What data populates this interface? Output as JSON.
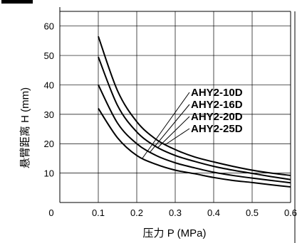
{
  "chart_data": {
    "type": "line",
    "xlabel": "压力 P (MPa)",
    "ylabel": "悬臂距离 H (mm)",
    "xlim": [
      0,
      0.6
    ],
    "ylim": [
      0,
      65
    ],
    "x_ticks": [
      "0",
      "0.1",
      "0.2",
      "0.3",
      "0.4",
      "0.5",
      "0.6"
    ],
    "y_ticks": [
      "10",
      "20",
      "30",
      "40",
      "50",
      "60"
    ],
    "grid": true,
    "series": [
      {
        "name": "AHY2-10D",
        "x": [
          0.1,
          0.15,
          0.2,
          0.25,
          0.3,
          0.35,
          0.4,
          0.45,
          0.5,
          0.55,
          0.6
        ],
        "y": [
          32,
          22,
          16,
          13,
          11,
          9.8,
          8.5,
          7.5,
          6.8,
          6,
          5.3
        ]
      },
      {
        "name": "AHY2-16D",
        "x": [
          0.1,
          0.15,
          0.2,
          0.25,
          0.3,
          0.35,
          0.4,
          0.45,
          0.5,
          0.55,
          0.6
        ],
        "y": [
          40,
          27,
          20,
          16,
          13.5,
          11.8,
          10.3,
          9.2,
          8.3,
          7.5,
          6.7
        ]
      },
      {
        "name": "AHY2-20D",
        "x": [
          0.1,
          0.15,
          0.2,
          0.25,
          0.3,
          0.35,
          0.4,
          0.45,
          0.5,
          0.55,
          0.6
        ],
        "y": [
          49.5,
          33,
          24,
          19,
          16,
          14,
          12.3,
          11,
          9.9,
          8.8,
          7.8
        ]
      },
      {
        "name": "AHY2-25D",
        "x": [
          0.1,
          0.15,
          0.2,
          0.25,
          0.3,
          0.35,
          0.4,
          0.45,
          0.5,
          0.55,
          0.6
        ],
        "y": [
          56.5,
          38,
          27.5,
          21.5,
          18,
          15.5,
          13.8,
          12.3,
          11,
          10,
          9.2
        ]
      }
    ],
    "labels": [
      "AHY2-10D",
      "AHY2-16D",
      "AHY2-20D",
      "AHY2-25D"
    ],
    "leader_anchor_x": [
      0.215,
      0.235,
      0.255,
      0.275
    ]
  }
}
